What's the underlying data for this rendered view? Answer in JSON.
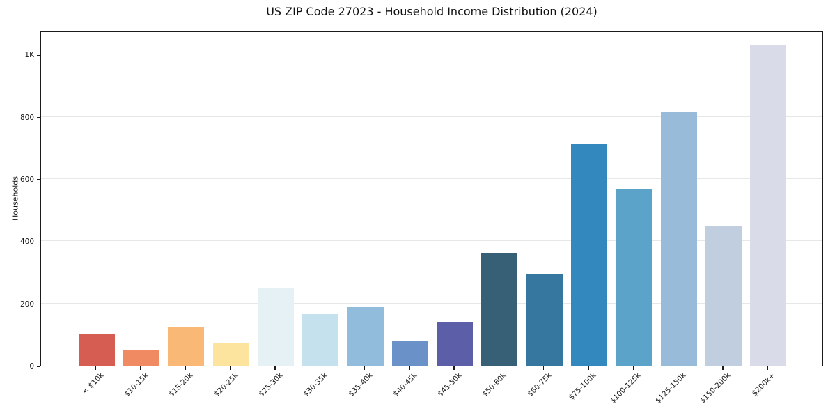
{
  "chart_data": {
    "type": "bar",
    "title": "US ZIP Code 27023 - Household Income Distribution (2024)",
    "xlabel": "",
    "ylabel": "Households",
    "categories": [
      "< $10k",
      "$10-15k",
      "$15-20k",
      "$20-25k",
      "$25-30k",
      "$30-35k",
      "$35-40k",
      "$40-45k",
      "$45-50k",
      "$50-60k",
      "$60-75k",
      "$75-100k",
      "$100-125k",
      "$125-150k",
      "$150-200k",
      "$200k+"
    ],
    "values": [
      100,
      49,
      123,
      72,
      251,
      165,
      188,
      78,
      140,
      362,
      296,
      715,
      566,
      815,
      450,
      1030
    ],
    "bar_colors": [
      "#d65d52",
      "#ef8a62",
      "#fab877",
      "#fde49e",
      "#e6f1f6",
      "#c5e1ee",
      "#92bcdb",
      "#6b92c8",
      "#5c5ea8",
      "#375f75",
      "#35779f",
      "#3389bd",
      "#5ba3c9",
      "#97bbd9",
      "#c0cedf",
      "#d9dbe9"
    ],
    "ylim": [
      0,
      1077
    ],
    "yticks": [
      {
        "value": 0,
        "label": "0"
      },
      {
        "value": 200,
        "label": "200"
      },
      {
        "value": 400,
        "label": "400"
      },
      {
        "value": 600,
        "label": "600"
      },
      {
        "value": 800,
        "label": "800"
      },
      {
        "value": 1000,
        "label": "1K"
      }
    ],
    "grid": "horizontal",
    "legend": "none",
    "background_color": "#ffffff",
    "spine_color": "#1a1a1a",
    "grid_color": "#e7e7e7"
  }
}
